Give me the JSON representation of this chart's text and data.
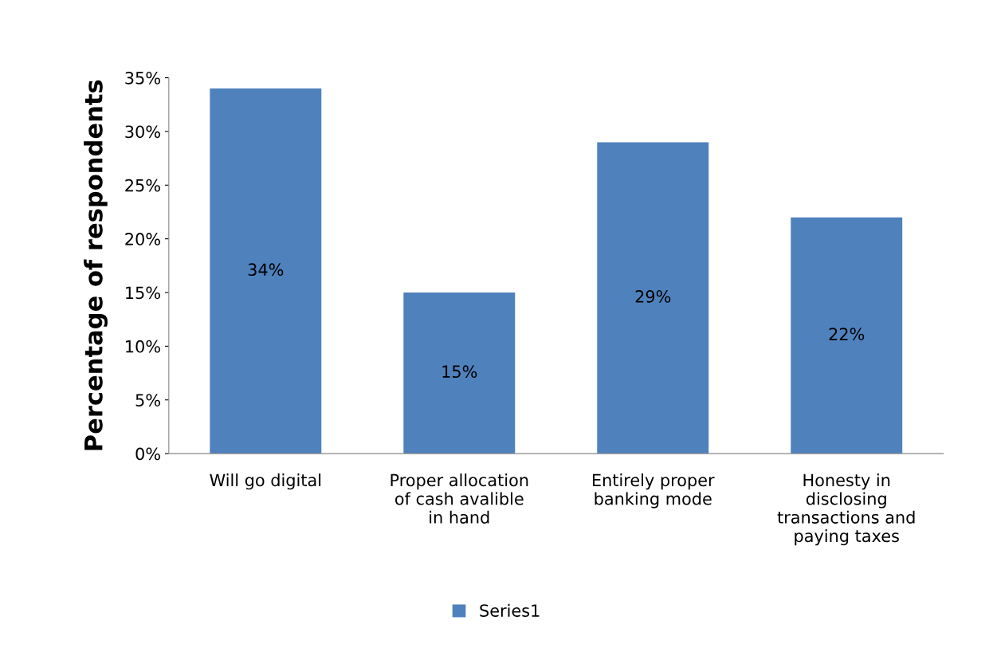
{
  "chart_data": {
    "type": "bar",
    "ylabel": "Percentage of respondents",
    "categories": [
      "Will go digital",
      "Proper allocation of cash avalible in hand",
      "Entirely proper banking mode",
      "Honesty in disclosing transactions and paying taxes"
    ],
    "series": [
      {
        "name": "Series1",
        "color": "#4f81bd",
        "values": [
          34,
          15,
          29,
          22
        ],
        "value_labels": [
          "34%",
          "15%",
          "29%",
          "22%"
        ]
      }
    ],
    "ylim": [
      0,
      35
    ],
    "yticks": [
      {
        "value": 0,
        "label": "0%"
      },
      {
        "value": 5,
        "label": "5%"
      },
      {
        "value": 10,
        "label": "10%"
      },
      {
        "value": 15,
        "label": "15%"
      },
      {
        "value": 20,
        "label": "20%"
      },
      {
        "value": 25,
        "label": "25%"
      },
      {
        "value": 30,
        "label": "30%"
      },
      {
        "value": 35,
        "label": "35%"
      }
    ],
    "grid": false,
    "legend": "bottom"
  }
}
